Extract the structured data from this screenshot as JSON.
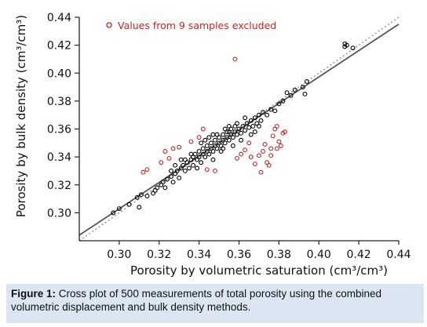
{
  "chart_data": {
    "type": "scatter",
    "title": "",
    "xlabel": "Porosity by volumetric saturation (cm³/cm³)",
    "ylabel": "Porosity by bulk density (cm³/cm³)",
    "xlim": [
      0.28,
      0.44
    ],
    "ylim": [
      0.28,
      0.44
    ],
    "x_ticks": [
      "0.30",
      "0.32",
      "0.34",
      "0.36",
      "0.38",
      "0.40",
      "0.42",
      "0.44"
    ],
    "y_ticks": [
      "0.30",
      "0.32",
      "0.34",
      "0.36",
      "0.38",
      "0.40",
      "0.42",
      "0.44"
    ],
    "legend": {
      "label": "Values from 9 samples excluded",
      "color": "#cc2222",
      "placement": "top-left"
    },
    "grid": false,
    "series": [
      {
        "color": "#000000",
        "marker": "open-circle",
        "points": [
          [
            0.297,
            0.3
          ],
          [
            0.3,
            0.303
          ],
          [
            0.305,
            0.306
          ],
          [
            0.309,
            0.311
          ],
          [
            0.311,
            0.313
          ],
          [
            0.31,
            0.304
          ],
          [
            0.314,
            0.312
          ],
          [
            0.317,
            0.314
          ],
          [
            0.318,
            0.316
          ],
          [
            0.319,
            0.318
          ],
          [
            0.321,
            0.32
          ],
          [
            0.322,
            0.322
          ],
          [
            0.324,
            0.324
          ],
          [
            0.323,
            0.318
          ],
          [
            0.326,
            0.326
          ],
          [
            0.327,
            0.322
          ],
          [
            0.328,
            0.328
          ],
          [
            0.329,
            0.33
          ],
          [
            0.33,
            0.325
          ],
          [
            0.331,
            0.332
          ],
          [
            0.332,
            0.334
          ],
          [
            0.333,
            0.33
          ],
          [
            0.334,
            0.336
          ],
          [
            0.335,
            0.332
          ],
          [
            0.336,
            0.338
          ],
          [
            0.337,
            0.34
          ],
          [
            0.337,
            0.334
          ],
          [
            0.338,
            0.342
          ],
          [
            0.339,
            0.338
          ],
          [
            0.34,
            0.34
          ],
          [
            0.34,
            0.344
          ],
          [
            0.341,
            0.336
          ],
          [
            0.342,
            0.342
          ],
          [
            0.342,
            0.346
          ],
          [
            0.343,
            0.34
          ],
          [
            0.344,
            0.344
          ],
          [
            0.344,
            0.348
          ],
          [
            0.345,
            0.342
          ],
          [
            0.346,
            0.346
          ],
          [
            0.346,
            0.35
          ],
          [
            0.347,
            0.344
          ],
          [
            0.348,
            0.348
          ],
          [
            0.348,
            0.352
          ],
          [
            0.349,
            0.346
          ],
          [
            0.35,
            0.35
          ],
          [
            0.35,
            0.354
          ],
          [
            0.351,
            0.348
          ],
          [
            0.352,
            0.352
          ],
          [
            0.352,
            0.356
          ],
          [
            0.353,
            0.35
          ],
          [
            0.354,
            0.354
          ],
          [
            0.354,
            0.358
          ],
          [
            0.355,
            0.352
          ],
          [
            0.356,
            0.356
          ],
          [
            0.356,
            0.36
          ],
          [
            0.357,
            0.354
          ],
          [
            0.358,
            0.358
          ],
          [
            0.358,
            0.362
          ],
          [
            0.359,
            0.356
          ],
          [
            0.36,
            0.36
          ],
          [
            0.361,
            0.357
          ],
          [
            0.362,
            0.362
          ],
          [
            0.363,
            0.359
          ],
          [
            0.364,
            0.364
          ],
          [
            0.365,
            0.361
          ],
          [
            0.366,
            0.366
          ],
          [
            0.367,
            0.362
          ],
          [
            0.368,
            0.368
          ],
          [
            0.369,
            0.364
          ],
          [
            0.37,
            0.37
          ],
          [
            0.371,
            0.366
          ],
          [
            0.372,
            0.372
          ],
          [
            0.374,
            0.37
          ],
          [
            0.376,
            0.374
          ],
          [
            0.378,
            0.373
          ],
          [
            0.38,
            0.378
          ],
          [
            0.382,
            0.38
          ],
          [
            0.384,
            0.386
          ],
          [
            0.386,
            0.384
          ],
          [
            0.388,
            0.388
          ],
          [
            0.392,
            0.39
          ],
          [
            0.393,
            0.385
          ],
          [
            0.394,
            0.394
          ],
          [
            0.413,
            0.419
          ],
          [
            0.413,
            0.421
          ],
          [
            0.414,
            0.42
          ],
          [
            0.417,
            0.418
          ],
          [
            0.339,
            0.332
          ],
          [
            0.343,
            0.352
          ],
          [
            0.347,
            0.338
          ],
          [
            0.351,
            0.344
          ],
          [
            0.353,
            0.36
          ],
          [
            0.357,
            0.348
          ],
          [
            0.359,
            0.364
          ],
          [
            0.361,
            0.352
          ],
          [
            0.363,
            0.368
          ],
          [
            0.366,
            0.356
          ],
          [
            0.368,
            0.358
          ],
          [
            0.37,
            0.362
          ],
          [
            0.345,
            0.354
          ],
          [
            0.349,
            0.356
          ],
          [
            0.355,
            0.362
          ],
          [
            0.333,
            0.338
          ],
          [
            0.336,
            0.342
          ],
          [
            0.328,
            0.334
          ],
          [
            0.326,
            0.33
          ],
          [
            0.331,
            0.338
          ],
          [
            0.341,
            0.35
          ],
          [
            0.347,
            0.356
          ],
          [
            0.352,
            0.346
          ],
          [
            0.355,
            0.358
          ]
        ]
      },
      {
        "color": "#cc2222",
        "marker": "open-circle",
        "points": [
          [
            0.312,
            0.329
          ],
          [
            0.314,
            0.331
          ],
          [
            0.321,
            0.336
          ],
          [
            0.323,
            0.344
          ],
          [
            0.325,
            0.339
          ],
          [
            0.327,
            0.346
          ],
          [
            0.33,
            0.347
          ],
          [
            0.336,
            0.351
          ],
          [
            0.34,
            0.354
          ],
          [
            0.342,
            0.36
          ],
          [
            0.344,
            0.331
          ],
          [
            0.348,
            0.33
          ],
          [
            0.358,
            0.41
          ],
          [
            0.359,
            0.339
          ],
          [
            0.361,
            0.342
          ],
          [
            0.363,
            0.345
          ],
          [
            0.365,
            0.35
          ],
          [
            0.366,
            0.34
          ],
          [
            0.368,
            0.335
          ],
          [
            0.37,
            0.341
          ],
          [
            0.371,
            0.329
          ],
          [
            0.372,
            0.344
          ],
          [
            0.373,
            0.349
          ],
          [
            0.374,
            0.336
          ],
          [
            0.375,
            0.334
          ],
          [
            0.376,
            0.346
          ],
          [
            0.377,
            0.355
          ],
          [
            0.378,
            0.36
          ],
          [
            0.379,
            0.362
          ],
          [
            0.38,
            0.351
          ],
          [
            0.381,
            0.348
          ],
          [
            0.382,
            0.357
          ],
          [
            0.383,
            0.358
          ],
          [
            0.379,
            0.346
          ],
          [
            0.376,
            0.341
          ]
        ]
      }
    ],
    "fit_line": {
      "style": "solid",
      "color": "#555555",
      "from": [
        0.28,
        0.284
      ],
      "to": [
        0.44,
        0.435
      ]
    },
    "identity_line": {
      "style": "dotted",
      "color": "#9a9a9a",
      "from": [
        0.28,
        0.28
      ],
      "to": [
        0.44,
        0.44
      ]
    }
  },
  "caption": {
    "label": "Figure 1:",
    "text": " Cross plot of 500 measurements of total porosity using the combined volumetric displacement and bulk density methods."
  }
}
